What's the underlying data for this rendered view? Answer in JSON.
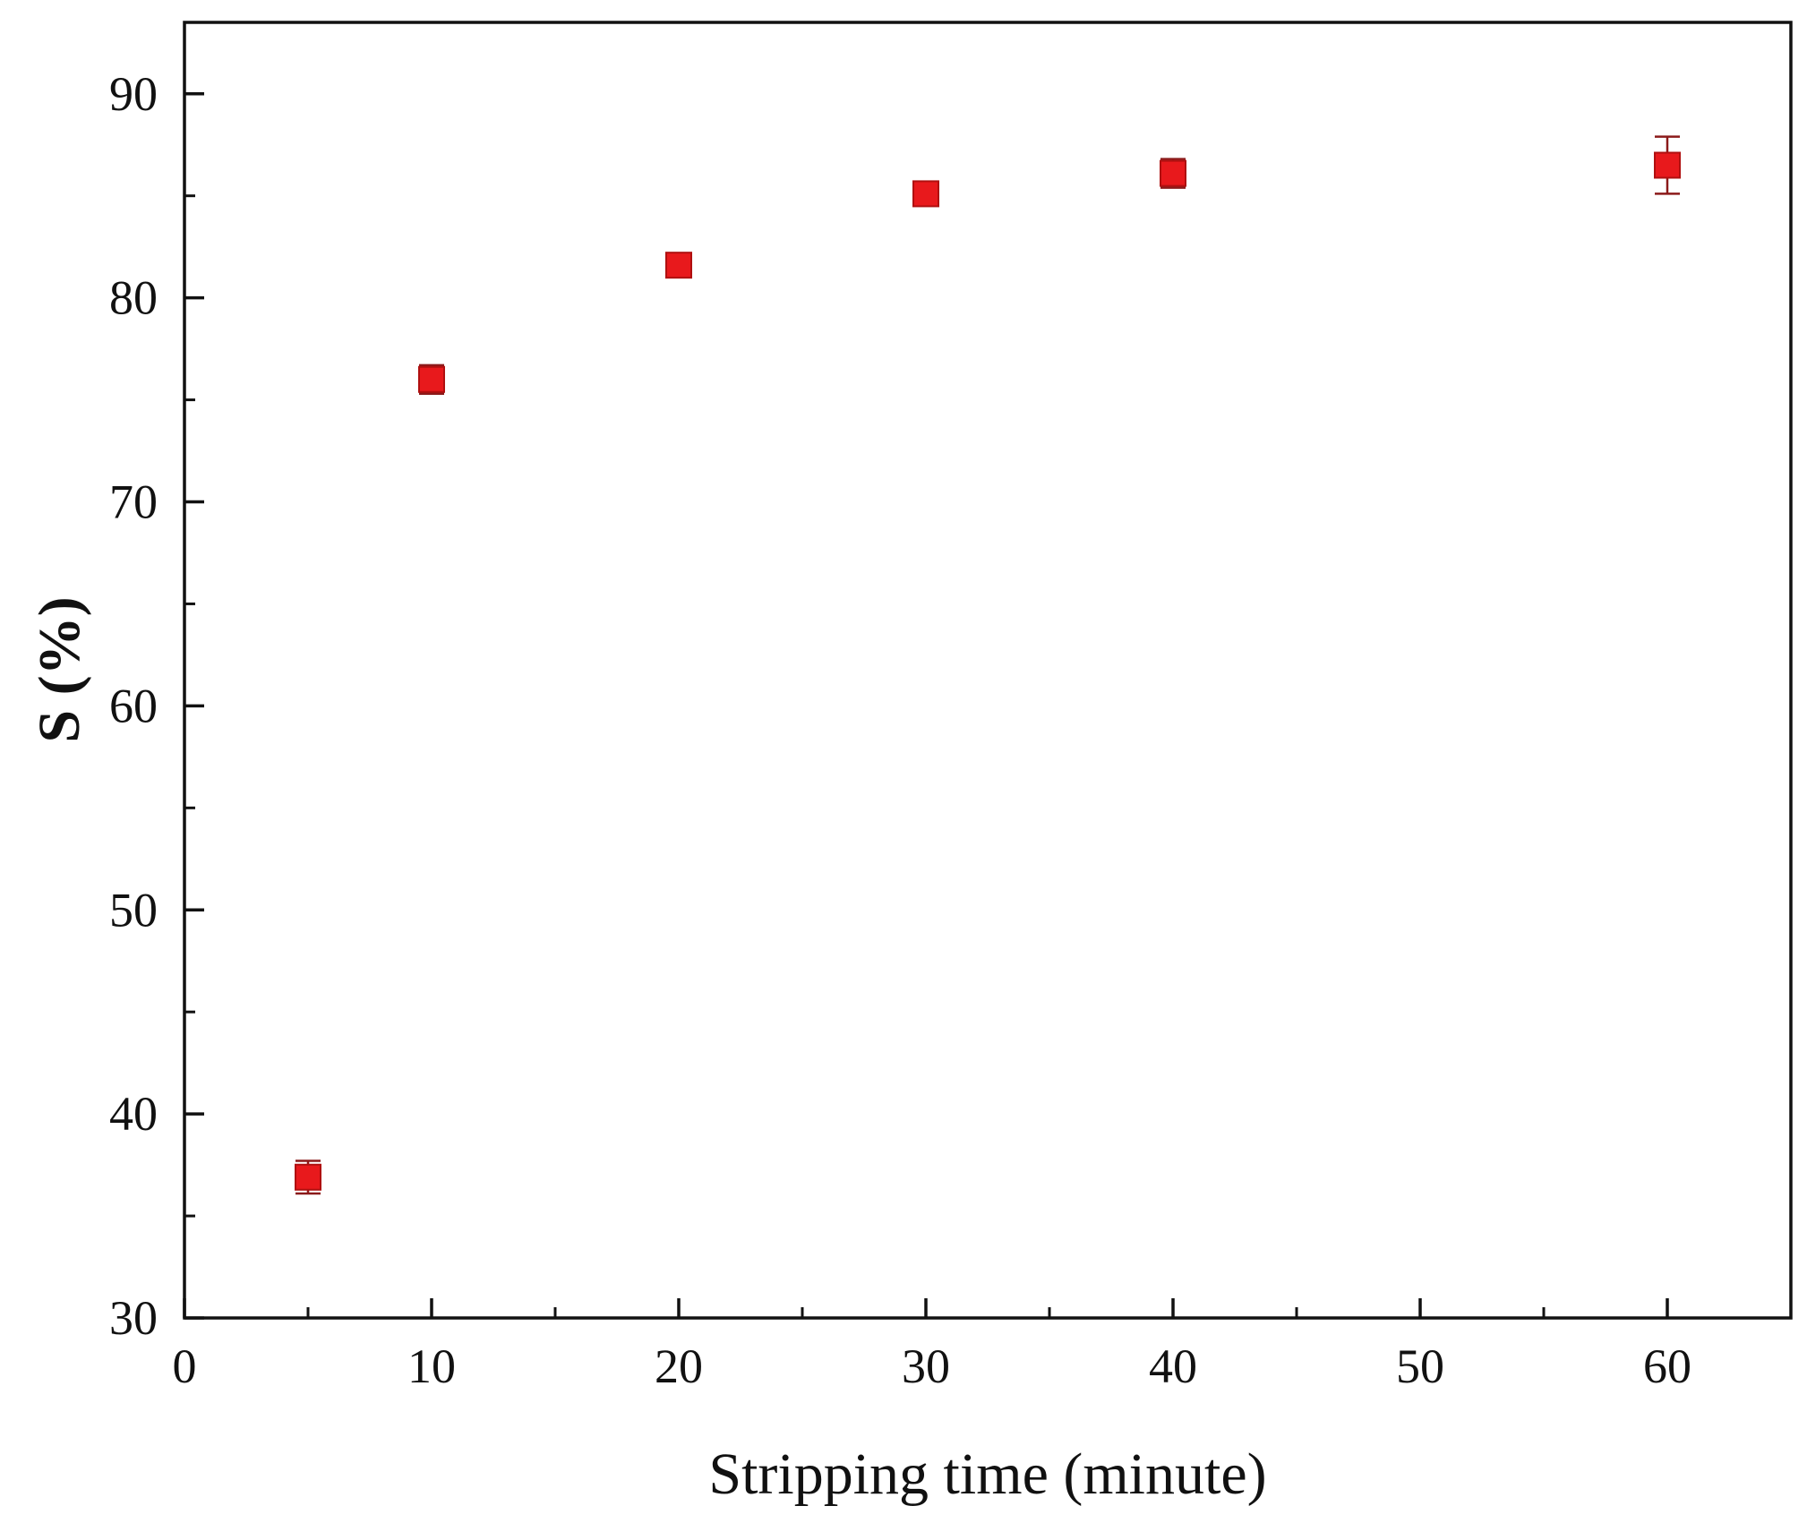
{
  "chart_data": {
    "type": "scatter",
    "title": "",
    "xlabel": "Stripping time (minute)",
    "ylabel": "S (%)",
    "xlim": [
      0,
      65
    ],
    "ylim": [
      30,
      93.5
    ],
    "x_ticks": [
      0,
      10,
      20,
      30,
      40,
      50,
      60
    ],
    "y_ticks": [
      30,
      40,
      50,
      60,
      70,
      80,
      90
    ],
    "x_minor_step": 5,
    "y_minor_step": 5,
    "grid": false,
    "legend": "none",
    "marker": "square",
    "marker_color": "#e8191c",
    "series": [
      {
        "x": [
          5,
          10,
          20,
          30,
          40,
          60
        ],
        "y": [
          36.9,
          76.0,
          81.6,
          85.1,
          86.1,
          86.5
        ],
        "error": [
          0.8,
          0.7,
          0.4,
          0.5,
          0.7,
          1.4
        ]
      }
    ]
  }
}
